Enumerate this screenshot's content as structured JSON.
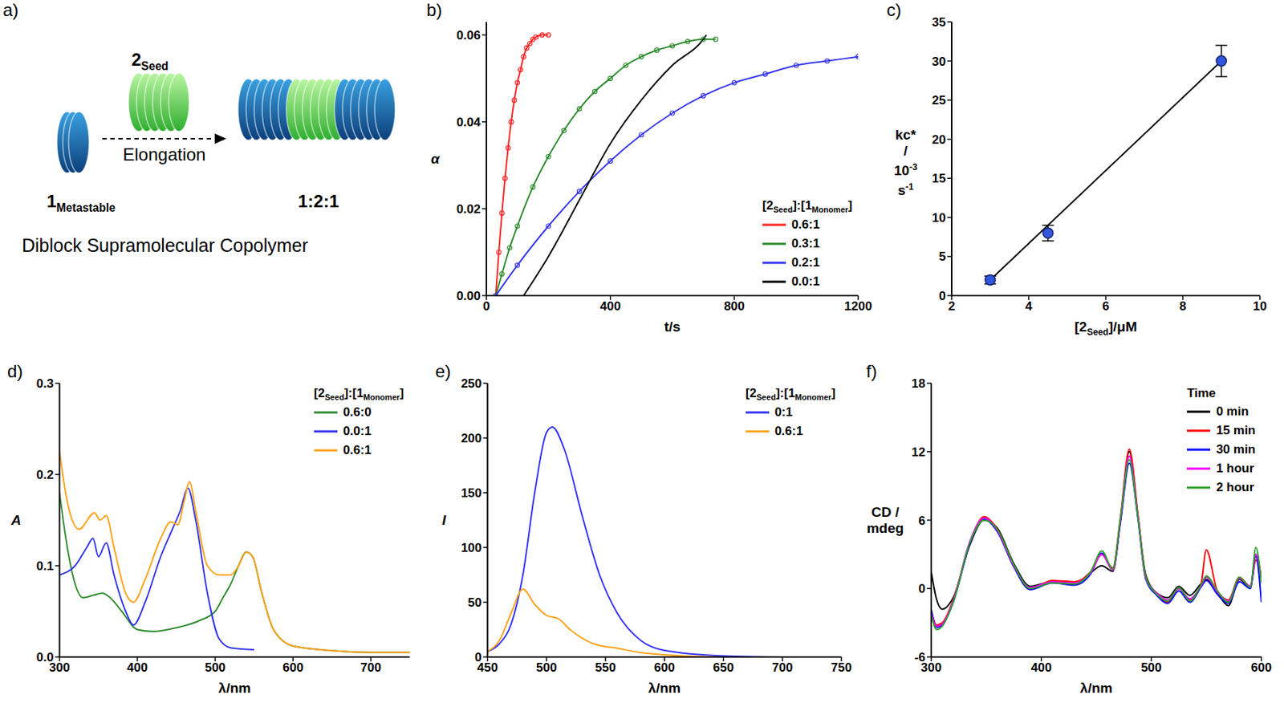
{
  "diagram": {
    "panel": "a)",
    "seed_label": [
      "2",
      {
        "sub": "Seed"
      }
    ],
    "arrow_label": "Elongation",
    "monomer_label": [
      "1",
      {
        "sub": "Metastable"
      }
    ],
    "product_label": "1:2:1",
    "caption": "Diblock Supramolecular Copolymer"
  },
  "chart_data": [
    {
      "panel": "b)",
      "type": "line",
      "x_label": "t/s",
      "y_label": "α",
      "legend": "lower right",
      "legend_title": [
        "[2",
        {
          "sub": "Seed"
        },
        "]:[1",
        {
          "sub": "Monomer"
        },
        "]"
      ],
      "xlim": [
        0,
        1200
      ],
      "xticks": [
        0,
        400,
        800,
        1200
      ],
      "ylim": [
        0,
        0.063
      ],
      "yticks": [
        {
          "value": 0,
          "label": "0.00"
        },
        {
          "value": 0.02,
          "label": "0.02"
        },
        {
          "value": 0.04,
          "label": "0.04"
        },
        {
          "value": 0.06,
          "label": "0.06"
        }
      ],
      "series": [
        {
          "name": "0.6:1",
          "color": "#ff2020",
          "marker": "circle",
          "x": [
            30,
            40,
            50,
            60,
            70,
            80,
            90,
            100,
            110,
            120,
            130,
            140,
            150,
            160,
            180,
            200
          ],
          "values": [
            0,
            0.01,
            0.019,
            0.027,
            0.034,
            0.04,
            0.045,
            0.049,
            0.052,
            0.055,
            0.057,
            0.058,
            0.059,
            0.0595,
            0.06,
            0.06
          ]
        },
        {
          "name": "0.3:1",
          "color": "#2a8a2a",
          "marker": "circle",
          "x": [
            30,
            50,
            75,
            100,
            150,
            200,
            250,
            300,
            350,
            400,
            450,
            500,
            550,
            600,
            650,
            700,
            740
          ],
          "values": [
            0,
            0.005,
            0.011,
            0.016,
            0.025,
            0.032,
            0.038,
            0.043,
            0.047,
            0.05,
            0.053,
            0.055,
            0.0565,
            0.0575,
            0.0585,
            0.059,
            0.059
          ]
        },
        {
          "name": "0.2:1",
          "color": "#3333ee",
          "marker": "circle",
          "x": [
            30,
            100,
            200,
            300,
            400,
            500,
            600,
            700,
            800,
            900,
            1000,
            1100,
            1200
          ],
          "values": [
            0,
            0.007,
            0.016,
            0.024,
            0.031,
            0.037,
            0.042,
            0.046,
            0.049,
            0.051,
            0.053,
            0.054,
            0.055
          ]
        },
        {
          "name": "0.0:1",
          "color": "#000000",
          "marker": "none",
          "x": [
            120,
            200,
            300,
            400,
            500,
            600,
            700,
            710
          ],
          "values": [
            0,
            0.009,
            0.022,
            0.035,
            0.045,
            0.053,
            0.059,
            0.06
          ]
        }
      ]
    },
    {
      "panel": "c)",
      "type": "scatter",
      "x_label": [
        "[2",
        {
          "sub": "Seed"
        },
        "]/μM"
      ],
      "y_label": [
        "kc*",
        "/",
        [
          "10",
          {
            "sup": "-3"
          }
        ],
        [
          "s",
          {
            "sup": "-1"
          }
        ]
      ],
      "xlim": [
        2,
        10
      ],
      "xticks": [
        2,
        4,
        6,
        8,
        10
      ],
      "ylim": [
        0,
        35
      ],
      "yticks": [
        0,
        5,
        10,
        15,
        20,
        25,
        30,
        35
      ],
      "series": [
        {
          "type": "line",
          "color": "#000000",
          "marker": "none",
          "x": [
            3,
            9
          ],
          "values": [
            2,
            30
          ]
        },
        {
          "type": "scatter",
          "color": "#3355dd",
          "marker": "circle",
          "x": [
            3,
            4.5,
            9
          ],
          "values": [
            2,
            8,
            30
          ],
          "errors": [
            0.5,
            1,
            2
          ]
        }
      ]
    },
    {
      "panel": "d)",
      "type": "line",
      "x_label": "λ/nm",
      "y_label": "A",
      "legend": "upper right",
      "legend_title": [
        "[2",
        {
          "sub": "Seed"
        },
        "]:[1",
        {
          "sub": "Monomer"
        },
        "]"
      ],
      "xlim": [
        300,
        750
      ],
      "xticks": [
        300,
        400,
        500,
        600,
        700
      ],
      "ylim": [
        0,
        0.3
      ],
      "yticks": [
        {
          "value": 0,
          "label": "0.0"
        },
        {
          "value": 0.1,
          "label": "0.1"
        },
        {
          "value": 0.2,
          "label": "0.2"
        },
        {
          "value": 0.3,
          "label": "0.3"
        }
      ],
      "series": [
        {
          "name": "0.6:0",
          "color": "#2e8b2e",
          "marker": "none",
          "x": [
            300,
            310,
            320,
            330,
            345,
            355,
            365,
            380,
            400,
            420,
            450,
            480,
            500,
            510,
            520,
            530,
            540,
            548,
            560,
            575,
            600,
            650,
            700,
            750
          ],
          "values": [
            0.18,
            0.12,
            0.08,
            0.065,
            0.068,
            0.07,
            0.065,
            0.05,
            0.03,
            0.028,
            0.032,
            0.04,
            0.05,
            0.065,
            0.08,
            0.1,
            0.115,
            0.11,
            0.07,
            0.03,
            0.012,
            0.007,
            0.005,
            0.005
          ]
        },
        {
          "name": "0.0:1",
          "color": "#3333ee",
          "marker": "none",
          "x": [
            300,
            320,
            335,
            343,
            350,
            360,
            370,
            385,
            395,
            410,
            430,
            445,
            455,
            465,
            475,
            490,
            505,
            520,
            550
          ],
          "values": [
            0.09,
            0.1,
            0.12,
            0.13,
            0.11,
            0.125,
            0.09,
            0.05,
            0.035,
            0.06,
            0.11,
            0.14,
            0.16,
            0.185,
            0.15,
            0.07,
            0.02,
            0.01,
            0.008
          ]
        },
        {
          "name": "0.6:1",
          "color": "#ffa21a",
          "marker": "none",
          "x": [
            300,
            310,
            325,
            345,
            352,
            360,
            370,
            385,
            395,
            410,
            430,
            443,
            452,
            460,
            467,
            475,
            490,
            505,
            520,
            530,
            540,
            548,
            560,
            575,
            600,
            650,
            700,
            750
          ],
          "values": [
            0.225,
            0.17,
            0.14,
            0.158,
            0.15,
            0.155,
            0.12,
            0.07,
            0.06,
            0.085,
            0.13,
            0.148,
            0.145,
            0.17,
            0.192,
            0.16,
            0.1,
            0.09,
            0.09,
            0.1,
            0.115,
            0.11,
            0.07,
            0.03,
            0.012,
            0.007,
            0.005,
            0.005
          ]
        }
      ]
    },
    {
      "panel": "e)",
      "type": "line",
      "x_label": "λ/nm",
      "y_label": "I",
      "legend": "upper right",
      "legend_title": [
        "[2",
        {
          "sub": "Seed"
        },
        "]:[1",
        {
          "sub": "Monomer"
        },
        "]"
      ],
      "xlim": [
        450,
        750
      ],
      "xticks": [
        450,
        500,
        550,
        600,
        650,
        700,
        750
      ],
      "ylim": [
        0,
        250
      ],
      "yticks": [
        0,
        50,
        100,
        150,
        200,
        250
      ],
      "series": [
        {
          "name": "0:1",
          "color": "#3030ff",
          "marker": "none",
          "x": [
            450,
            460,
            470,
            480,
            490,
            500,
            505,
            515,
            530,
            545,
            560,
            580,
            600,
            650,
            700,
            750
          ],
          "values": [
            5,
            12,
            30,
            75,
            150,
            205,
            210,
            190,
            130,
            75,
            40,
            15,
            6,
            1,
            0,
            0
          ]
        },
        {
          "name": "0.6:1",
          "color": "#ffa21a",
          "marker": "none",
          "x": [
            450,
            460,
            470,
            480,
            490,
            500,
            510,
            520,
            540,
            560,
            580,
            600,
            650,
            750
          ],
          "values": [
            5,
            15,
            40,
            62,
            48,
            38,
            35,
            25,
            12,
            8,
            4,
            2,
            0,
            0
          ]
        }
      ]
    },
    {
      "panel": "f)",
      "type": "line",
      "x_label": "λ/nm",
      "y_label": [
        "CD /",
        "mdeg"
      ],
      "legend": "upper right",
      "legend_title": "Time",
      "xlim": [
        300,
        600
      ],
      "xticks": [
        300,
        400,
        500,
        600
      ],
      "ylim": [
        -6,
        18
      ],
      "yticks": [
        -6,
        0,
        6,
        12,
        18
      ],
      "x": [
        300,
        305,
        310,
        320,
        335,
        348,
        360,
        375,
        390,
        410,
        430,
        445,
        455,
        465,
        472,
        480,
        488,
        495,
        505,
        515,
        525,
        535,
        545,
        550,
        560,
        570,
        580,
        590,
        595,
        600
      ],
      "series": [
        {
          "name": "0 min",
          "color": "#000000",
          "marker": "none",
          "values": [
            1.5,
            -1,
            -1.8,
            -0.8,
            3.8,
            6.0,
            5.3,
            2.2,
            0.2,
            0.6,
            0.4,
            1.4,
            2.0,
            1.5,
            6.0,
            12.0,
            6.2,
            1.2,
            -0.4,
            -0.8,
            0.2,
            -0.6,
            0.4,
            0.8,
            -0.4,
            -1.5,
            0.8,
            0.1,
            3.0,
            0.8
          ]
        },
        {
          "name": "15 min",
          "color": "#ff0000",
          "marker": "none",
          "values": [
            -2,
            -3.2,
            -3,
            -1,
            4,
            6.3,
            5.2,
            2,
            0,
            0.7,
            0.6,
            1.5,
            3,
            1.8,
            6.3,
            12.2,
            6.4,
            1,
            -0.5,
            -1.2,
            0,
            -1,
            0.3,
            3.4,
            -0.2,
            -1,
            1,
            0.2,
            2.5,
            1
          ]
        },
        {
          "name": "30 min",
          "color": "#0000ff",
          "marker": "none",
          "values": [
            -1.8,
            -3.4,
            -3.2,
            -1.2,
            3.9,
            6.1,
            5.0,
            1.9,
            -0.1,
            0.5,
            0.3,
            1.3,
            3.1,
            1.7,
            5.8,
            11.0,
            6.0,
            0.8,
            -0.6,
            -1.3,
            -0.2,
            -1.2,
            0.1,
            0.7,
            -0.5,
            -1.3,
            0.6,
            0,
            2.8,
            -1.2
          ]
        },
        {
          "name": "1 hour",
          "color": "#ff00ff",
          "marker": "none",
          "values": [
            -2.2,
            -3.3,
            -3.1,
            -1.1,
            4.1,
            6.2,
            5.1,
            2.0,
            0.1,
            0.6,
            0.5,
            1.4,
            3.0,
            1.6,
            6.1,
            11.6,
            6.2,
            0.9,
            -0.4,
            -1.0,
            0,
            -0.9,
            0.2,
            1.0,
            -0.3,
            -1.1,
            0.9,
            0.2,
            3.0,
            0.9
          ]
        },
        {
          "name": "2 hour",
          "color": "#2ca02c",
          "marker": "none",
          "values": [
            -2.3,
            -3.6,
            -3.3,
            -1.2,
            4.0,
            6.0,
            5.2,
            2.1,
            0,
            0.5,
            0.4,
            1.5,
            3.3,
            1.7,
            6.2,
            11.3,
            6.1,
            1.0,
            -0.5,
            -1.1,
            0.1,
            -1.1,
            0.3,
            1.1,
            -0.2,
            -1.2,
            1.0,
            0.1,
            3.6,
            0.5
          ]
        }
      ]
    }
  ]
}
